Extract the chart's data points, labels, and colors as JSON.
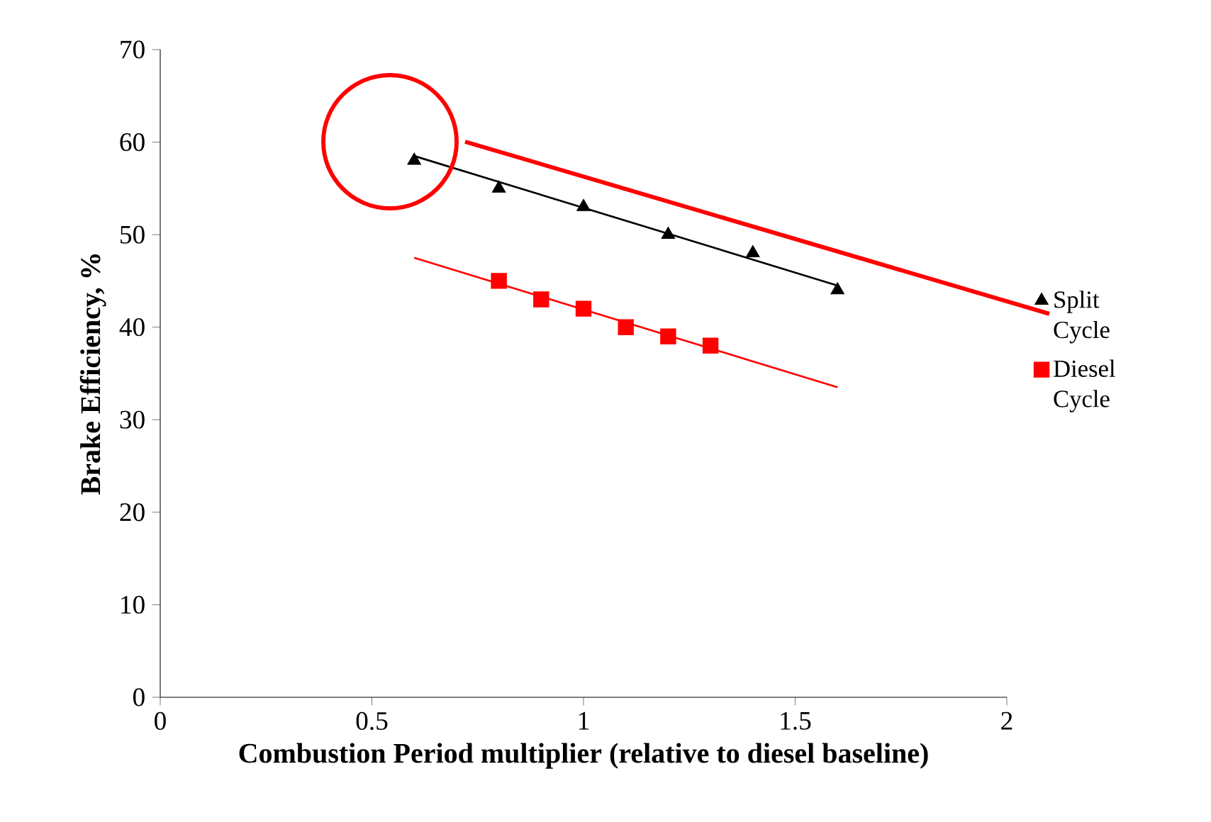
{
  "chart_data": {
    "type": "scatter",
    "xlabel": "Combustion Period multiplier (relative to diesel baseline)",
    "ylabel": "Brake Efficiency, %",
    "xlim": [
      0,
      2
    ],
    "ylim": [
      0,
      70
    ],
    "xticks": [
      0,
      0.5,
      1,
      1.5,
      2
    ],
    "yticks": [
      0,
      10,
      20,
      30,
      40,
      50,
      60,
      70
    ],
    "legend": "right",
    "series": [
      {
        "name": "Split Cycle",
        "color": "#000000",
        "marker": "triangle",
        "x": [
          0.6,
          0.8,
          1.0,
          1.2,
          1.4,
          1.6
        ],
        "values": [
          58,
          55,
          53,
          50,
          48,
          44
        ]
      },
      {
        "name": "Diesel Cycle",
        "color": "#ff0000",
        "marker": "square",
        "x": [
          0.8,
          0.9,
          1.0,
          1.1,
          1.2,
          1.3
        ],
        "values": [
          45,
          43,
          42,
          40,
          39,
          38
        ]
      },
      {
        "type": "line",
        "color": "#000000",
        "marker": "none",
        "x": [
          0.6,
          1.6
        ],
        "values": [
          58.5,
          44.5
        ]
      },
      {
        "type": "line",
        "color": "#ff0000",
        "marker": "none",
        "x": [
          0.6,
          1.6
        ],
        "values": [
          47.5,
          33.5
        ]
      }
    ]
  }
}
